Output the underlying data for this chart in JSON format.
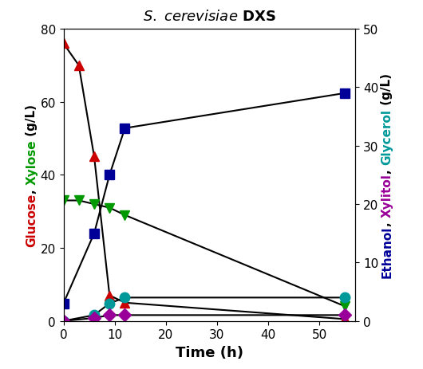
{
  "title_bold": " DXS",
  "xlabel": "Time (h)",
  "ylim_left": [
    0,
    80
  ],
  "ylim_right": [
    0,
    50
  ],
  "xlim": [
    0,
    57
  ],
  "xticks": [
    0,
    10,
    20,
    30,
    40,
    50
  ],
  "yticks_left": [
    0,
    20,
    40,
    60,
    80
  ],
  "yticks_right": [
    0,
    10,
    20,
    30,
    40,
    50
  ],
  "glucose": {
    "x": [
      0,
      3,
      6,
      9,
      12,
      55
    ],
    "y": [
      76,
      70,
      45,
      7,
      5,
      0.5
    ],
    "color": "#cc0000",
    "marker": "^",
    "markersize": 9
  },
  "xylose": {
    "x": [
      0,
      3,
      6,
      9,
      12,
      55
    ],
    "y": [
      33,
      33,
      32,
      31,
      29,
      4
    ],
    "color": "#009900",
    "marker": "v",
    "markersize": 9
  },
  "ethanol": {
    "x": [
      0,
      6,
      9,
      12,
      55
    ],
    "y": [
      3,
      15,
      25,
      33,
      39
    ],
    "color": "#000099",
    "marker": "s",
    "markersize": 9
  },
  "glycerol": {
    "x": [
      0,
      6,
      9,
      12,
      55
    ],
    "y": [
      0,
      1,
      3,
      4,
      4
    ],
    "color": "#009999",
    "marker": "o",
    "markersize": 9
  },
  "xylitol": {
    "x": [
      0,
      6,
      9,
      12,
      55
    ],
    "y": [
      0,
      0.5,
      1,
      1,
      1
    ],
    "color": "#990099",
    "marker": "D",
    "markersize": 8
  },
  "left_pieces": [
    [
      "Glucose",
      "#cc0000"
    ],
    [
      ", ",
      "#000000"
    ],
    [
      "Xylose",
      "#009900"
    ],
    [
      " (g/L)",
      "#000000"
    ]
  ],
  "right_pieces": [
    [
      "Ethanol",
      "#000099"
    ],
    [
      ", ",
      "#000000"
    ],
    [
      "Xylitol",
      "#990099"
    ],
    [
      ", ",
      "#000000"
    ],
    [
      "Glycerol",
      "#009999"
    ],
    [
      " (g/L)",
      "#000000"
    ]
  ],
  "linecolor": "#000000",
  "linewidth": 1.5,
  "fontsize": 11
}
